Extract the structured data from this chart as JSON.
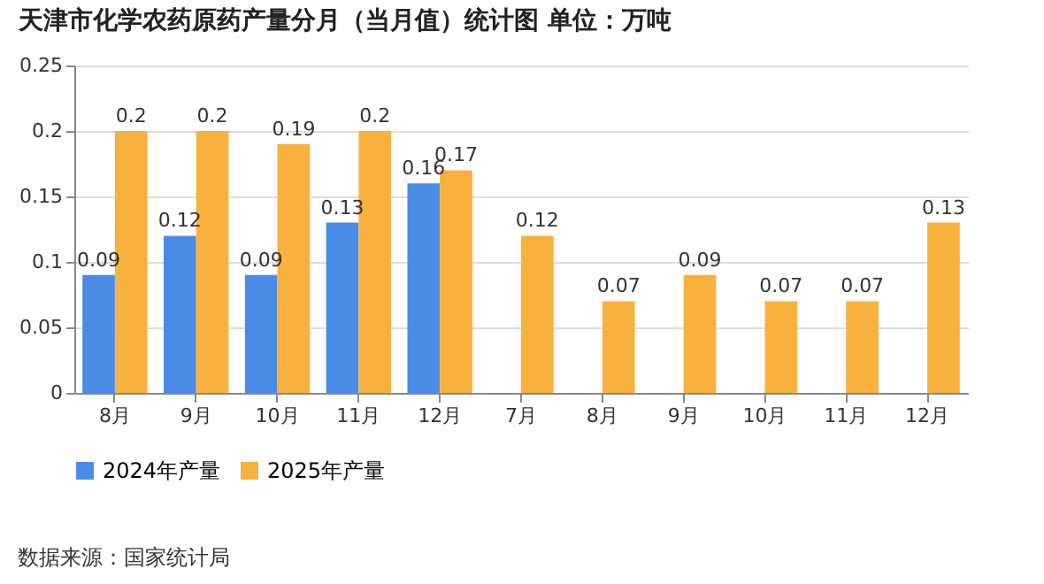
{
  "chart_data": {
    "type": "bar",
    "title": "天津市化学农药原药产量分月（当月值）统计图  单位：万吨",
    "categories": [
      "8月",
      "9月",
      "10月",
      "11月",
      "12月",
      "7月",
      "8月",
      "9月",
      "10月",
      "11月",
      "12月"
    ],
    "series": [
      {
        "name": "2024年产量",
        "color": "#4a8be8",
        "values": [
          0.09,
          0.12,
          0.09,
          0.13,
          0.16,
          null,
          null,
          null,
          null,
          null,
          null
        ]
      },
      {
        "name": "2025年产量",
        "color": "#f8b13f",
        "values": [
          0.2,
          0.2,
          0.19,
          0.2,
          0.17,
          0.12,
          0.07,
          0.09,
          0.07,
          0.07,
          0.13
        ]
      }
    ],
    "ylim": [
      0,
      0.25
    ],
    "yticks": [
      0,
      0.05,
      0.1,
      0.15,
      0.2,
      0.25
    ],
    "grid": "y",
    "legend": "bottom",
    "data_labels": true,
    "annotations": [
      "数据来源：国家统计局"
    ]
  }
}
